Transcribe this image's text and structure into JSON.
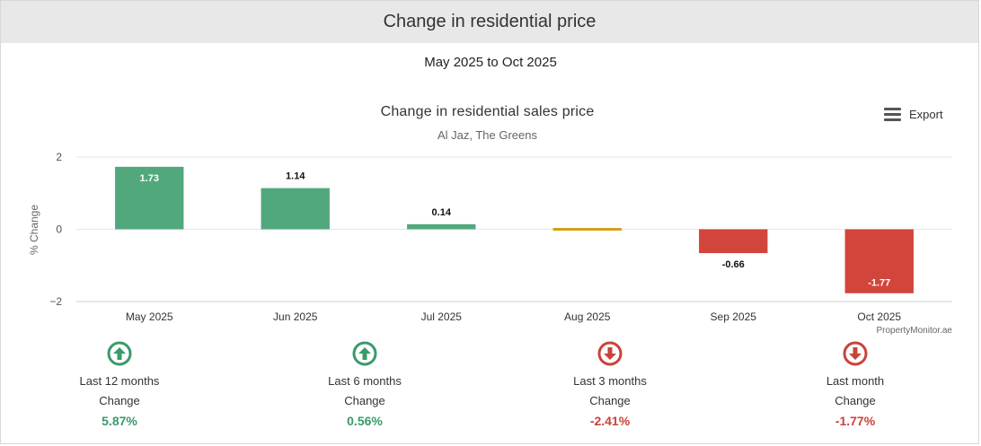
{
  "header": {
    "title": "Change in residential price"
  },
  "date_range": "May 2025 to Oct 2025",
  "export_label": "Export",
  "credit": "PropertyMonitor.ae",
  "colors": {
    "positive": "#52a87d",
    "neutral": "#d4a017",
    "negative": "#d2453b",
    "up_text": "#3a9a6a",
    "down_text": "#c9433a"
  },
  "chart_data": {
    "type": "bar",
    "title": "Change in residential sales price",
    "subtitle": "Al Jaz, The Greens",
    "xlabel": "",
    "ylabel": "% Change",
    "categories": [
      "May 2025",
      "Jun 2025",
      "Jul 2025",
      "Aug 2025",
      "Sep 2025",
      "Oct 2025"
    ],
    "values": [
      1.73,
      1.14,
      0.14,
      0.0,
      -0.66,
      -1.77
    ],
    "data_labels": [
      "1.73",
      "1.14",
      "0.14",
      "",
      "-0.66",
      "-1.77"
    ],
    "yticks": [
      "2",
      "0",
      "−2"
    ],
    "ytick_values": [
      2,
      0,
      -2
    ],
    "ylim": [
      -2,
      2
    ],
    "grid": true,
    "legend": "none"
  },
  "stats": [
    {
      "period": "Last 12 months",
      "label": "Change",
      "value": "5.87%",
      "direction": "up",
      "icon": "arrow-up-circle-icon"
    },
    {
      "period": "Last 6 months",
      "label": "Change",
      "value": "0.56%",
      "direction": "up",
      "icon": "arrow-up-circle-icon"
    },
    {
      "period": "Last 3 months",
      "label": "Change",
      "value": "-2.41%",
      "direction": "down",
      "icon": "arrow-down-circle-icon"
    },
    {
      "period": "Last month",
      "label": "Change",
      "value": "-1.77%",
      "direction": "down",
      "icon": "arrow-down-circle-icon"
    }
  ]
}
